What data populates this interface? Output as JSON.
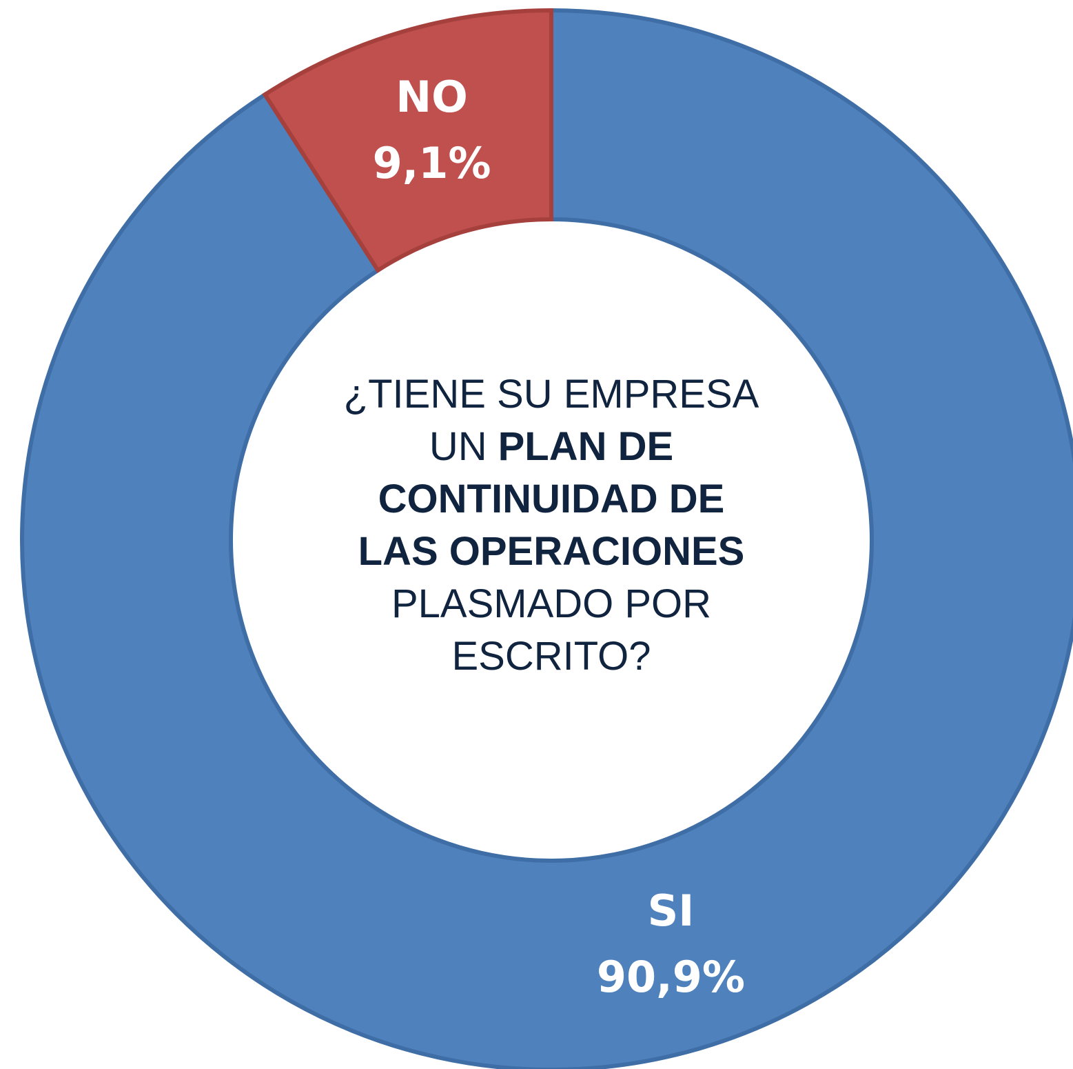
{
  "chart_data": {
    "type": "donut",
    "categories": [
      "SI",
      "NO"
    ],
    "values": [
      90.9,
      9.1
    ],
    "value_labels": [
      "90,9%",
      "9,1%"
    ],
    "colors": [
      "#4f81bd",
      "#c0504d"
    ],
    "center_text": [
      [
        {
          "text": "¿TIENE SU EMPRESA",
          "bold": false
        }
      ],
      [
        {
          "text": "UN",
          "bold": false
        },
        {
          "text": "PLAN DE",
          "bold": true
        }
      ],
      [
        {
          "text": "CONTINUIDAD DE",
          "bold": true
        }
      ],
      [
        {
          "text": "LAS OPERACIONES",
          "bold": true
        }
      ],
      [
        {
          "text": "PLASMADO POR",
          "bold": false
        }
      ],
      [
        {
          "text": "ESCRITO?",
          "bold": false
        }
      ]
    ]
  }
}
